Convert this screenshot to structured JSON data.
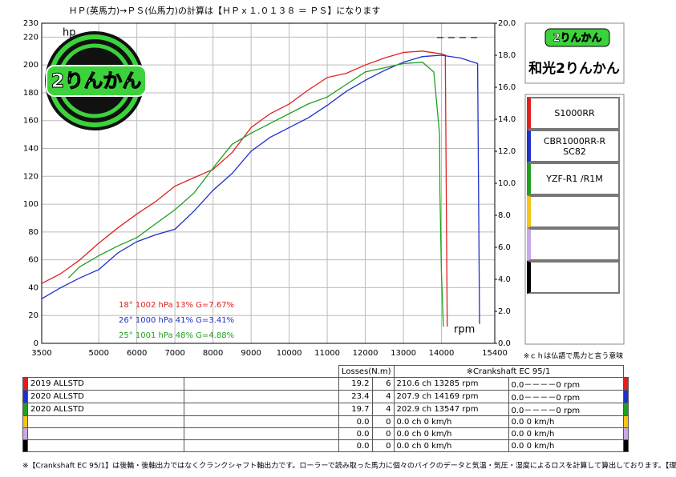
{
  "chart_data": {
    "type": "line",
    "title": "ＨＰ(英馬力)→ＰＳ(仏馬力)の計算は【ＨＰｘ１.０１３８ ＝ ＰＳ】になります",
    "y_label": "hp",
    "x_label": "rpm",
    "xlim": [
      3500,
      15400
    ],
    "xticks": [
      3500,
      5000,
      6000,
      7000,
      8000,
      9000,
      10000,
      11000,
      12000,
      13000,
      14000,
      15400
    ],
    "ylim": [
      0,
      230
    ],
    "yticks": [
      0,
      20,
      40,
      60,
      80,
      100,
      120,
      140,
      160,
      180,
      200,
      220,
      230
    ],
    "y2lim": [
      0,
      20
    ],
    "y2ticks": [
      {
        "value": 0,
        "label": "0.0"
      },
      {
        "value": 2,
        "label": "2.0"
      },
      {
        "value": 4,
        "label": "4.0"
      },
      {
        "value": 6,
        "label": "6.0"
      },
      {
        "value": 8,
        "label": "8.0"
      },
      {
        "value": 10,
        "label": "10.0"
      },
      {
        "value": 12,
        "label": "12.0"
      },
      {
        "value": 14,
        "label": "14.0"
      },
      {
        "value": 16,
        "label": "16.0"
      },
      {
        "value": 18,
        "label": "18.0"
      },
      {
        "value": 20,
        "label": "20.0"
      }
    ],
    "grid": true,
    "series": [
      {
        "name": "S1000RR",
        "color": "#e02020",
        "x": [
          3500,
          4000,
          4500,
          5000,
          5500,
          6000,
          6500,
          7000,
          7500,
          8000,
          8500,
          9000,
          9500,
          10000,
          10500,
          11000,
          11500,
          12000,
          12500,
          13000,
          13500,
          14000,
          14100,
          14150
        ],
        "values": [
          43,
          50,
          60,
          72,
          83,
          93,
          102,
          113,
          119,
          125,
          137,
          155,
          165,
          172,
          182,
          191,
          194,
          200,
          205,
          209,
          210,
          208,
          207,
          12
        ]
      },
      {
        "name": "CBR1000RR-R SC82",
        "color": "#2030c8",
        "x": [
          3500,
          4000,
          4500,
          5000,
          5500,
          6000,
          6500,
          7000,
          7500,
          8000,
          8500,
          9000,
          9500,
          10000,
          10500,
          11000,
          11500,
          12000,
          12500,
          13000,
          13500,
          14000,
          14500,
          14950,
          15000
        ],
        "values": [
          32,
          40,
          47,
          53,
          65,
          73,
          78,
          82,
          95,
          110,
          122,
          138,
          148,
          155,
          162,
          171,
          181,
          189,
          196,
          202,
          206,
          207,
          205,
          201,
          14
        ]
      },
      {
        "name": "YZF-R1 /R1M",
        "color": "#20a020",
        "x": [
          4200,
          4500,
          5000,
          5500,
          6000,
          6500,
          7000,
          7500,
          8000,
          8500,
          9000,
          9500,
          10000,
          10500,
          11000,
          11500,
          12000,
          12500,
          13000,
          13500,
          13800,
          13950,
          13960,
          14000,
          14050
        ],
        "values": [
          47,
          55,
          63,
          70,
          76,
          86,
          96,
          108,
          126,
          143,
          151,
          158,
          165,
          172,
          177,
          186,
          195,
          198,
          201,
          202,
          195,
          150,
          110,
          50,
          12
        ]
      }
    ],
    "conditions": [
      {
        "text": "18°  1002 hPa  13%    G=7.67%",
        "color": "#e02020"
      },
      {
        "text": "26°  1000 hPa  41%    G=3.41%",
        "color": "#2030c8"
      },
      {
        "text": "25°  1001 hPa  48%    G=4.88%",
        "color": "#20a020"
      }
    ],
    "logo": "2りんかん",
    "shop": {
      "badge": "2りんかん",
      "name": "和光2りんかん"
    },
    "note": "※ｃｈは仏語で馬力と言う意味",
    "table": {
      "header": [
        "Losses(N.m)",
        "※Crankshaft EC 95/1"
      ],
      "rows": [
        {
          "color": "#e02020",
          "cells": [
            "2019 ALLSTD",
            "19.2",
            "6",
            "210.6 ch 13285 rpm",
            "0.0－－－－0 rpm"
          ]
        },
        {
          "color": "#2030c8",
          "cells": [
            "2020 ALLSTD",
            "23.4",
            "4",
            "207.9 ch 14169 rpm",
            "0.0－－－－0 rpm"
          ]
        },
        {
          "color": "#20a020",
          "cells": [
            "2020 ALLSTD",
            "19.7",
            "4",
            "202.9 ch 13547 rpm",
            "0.0－－－－0 rpm"
          ]
        },
        {
          "color": "#f5c518",
          "cells": [
            "",
            "0.0",
            "0",
            "0.0 ch 0 km/h",
            "0.0  0 km/h"
          ]
        },
        {
          "color": "#c8a8e8",
          "cells": [
            "",
            "0.0",
            "0",
            "0.0 ch 0 km/h",
            "0.0  0 km/h"
          ]
        },
        {
          "color": "#000000",
          "cells": [
            "",
            "0.0",
            "0",
            "0.0 ch 0 km/h",
            "0.0  0 km/h"
          ]
        }
      ]
    },
    "legend_extra_colors": [
      "#f5c518",
      "#c8a8e8",
      "#000000"
    ],
    "footer": "※【Crankshaft EC 95/1】は後輪・後軸出力ではなくクランクシャフト軸出力です。ローラーで読み取った馬力に個々のバイクのデータと気温・気圧・湿度によるロスを計算して算出しております。【理論値】"
  }
}
